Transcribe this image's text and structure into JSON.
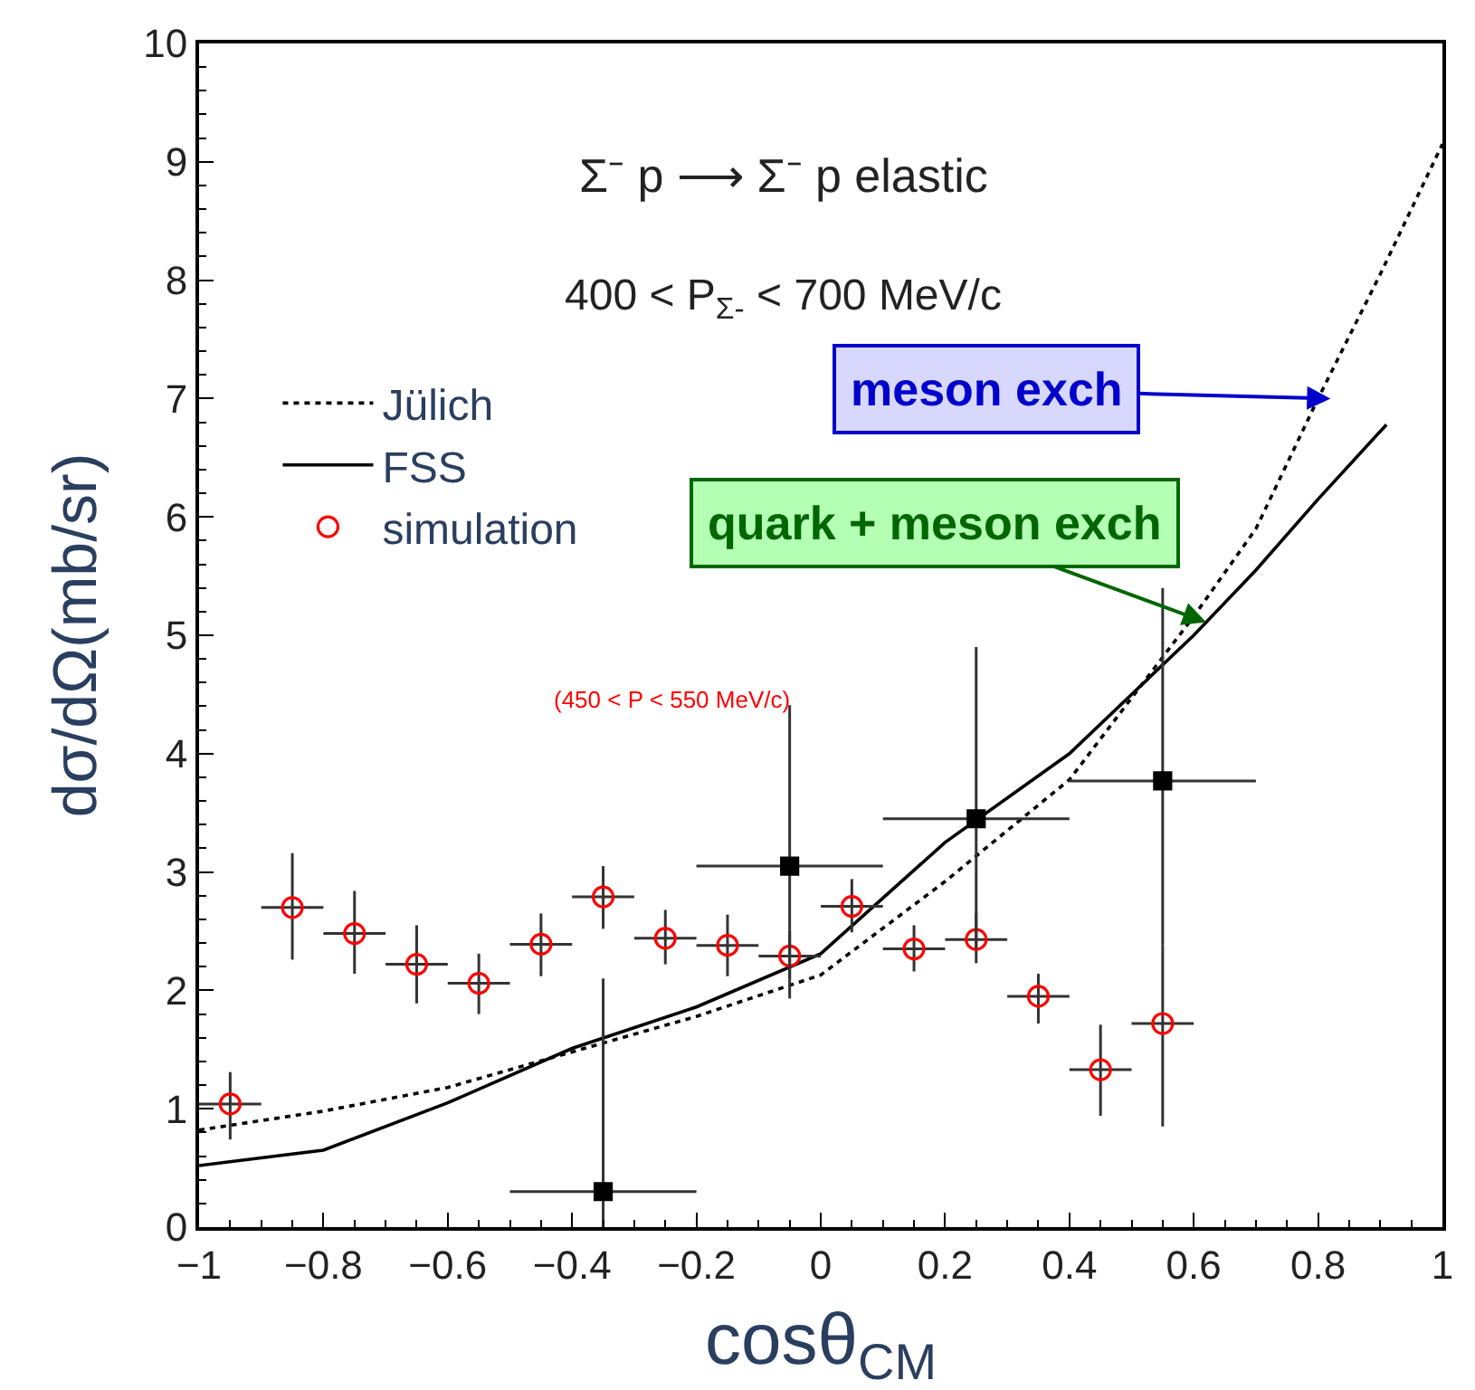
{
  "chart_data": {
    "type": "scatter",
    "xlabel": "cosθ$_{CM}$",
    "ylabel": "dσ/dΩ(mb/sr)",
    "annotations": [
      "Σ⁻ p ⟶ Σ⁻ p elastic",
      "400 < P$_{Σ-}$ < 700 MeV/c",
      "(450 < P < 550 MeV/c)",
      {
        "text": "meson exch",
        "x": 0.82,
        "y": 7.0
      },
      {
        "text": "quark + meson exch",
        "x": 0.62,
        "y": 5.11
      }
    ],
    "xlim": [
      -1,
      1
    ],
    "ylim": [
      0,
      10
    ],
    "xticks": [
      {
        "value": -1,
        "label": "−1"
      },
      {
        "value": -0.8,
        "label": "−0.8"
      },
      {
        "value": -0.6,
        "label": "−0.6"
      },
      {
        "value": -0.4,
        "label": "−0.4"
      },
      {
        "value": -0.2,
        "label": "−0.2"
      },
      0,
      0.2,
      0.4,
      0.6,
      0.8,
      1
    ],
    "yticks": [
      0,
      1,
      2,
      3,
      4,
      5,
      6,
      7,
      8,
      9,
      10
    ],
    "legend": "top left",
    "series": [
      {
        "name": "Jülich",
        "type": "line",
        "color": "#000000",
        "marker": "none",
        "line_style": "dotted",
        "x": [
          -1,
          -0.8,
          -0.6,
          -0.4,
          -0.2,
          0,
          0.2,
          0.4,
          0.6,
          0.7,
          0.8,
          0.9,
          1
        ],
        "values": [
          0.82,
          0.98,
          1.18,
          1.48,
          1.78,
          2.13,
          2.92,
          3.78,
          5.16,
          5.9,
          7.0,
          8.05,
          9.15
        ]
      },
      {
        "name": "FSS",
        "type": "line",
        "color": "#000000",
        "marker": "none",
        "line_style": "solid",
        "x": [
          -1,
          -0.8,
          -0.6,
          -0.4,
          -0.2,
          0,
          0.2,
          0.4,
          0.6,
          0.7,
          0.8,
          0.91
        ],
        "values": [
          0.52,
          0.65,
          1.05,
          1.51,
          1.86,
          2.31,
          3.25,
          4.0,
          5.0,
          5.55,
          6.15,
          6.78
        ]
      },
      {
        "name": "simulation",
        "color": "#ff0000",
        "marker": "circle",
        "x": [
          -0.95,
          -0.85,
          -0.75,
          -0.65,
          -0.55,
          -0.45,
          -0.35,
          -0.25,
          -0.15,
          -0.05,
          0.05,
          0.15,
          0.25,
          0.35,
          0.45,
          0.55
        ],
        "values": [
          1.04,
          2.7,
          2.48,
          2.22,
          2.06,
          2.39,
          2.79,
          2.44,
          2.38,
          2.29,
          2.71,
          2.35,
          2.43,
          1.95,
          1.33,
          1.72
        ],
        "errors": [
          [
            0.74,
            1.31
          ],
          [
            2.26,
            3.16
          ],
          [
            2.14,
            2.84
          ],
          [
            1.89,
            2.55
          ],
          [
            1.8,
            2.31
          ],
          [
            2.12,
            2.65
          ],
          [
            2.52,
            3.05
          ],
          [
            2.22,
            2.68
          ],
          [
            2.12,
            2.64
          ],
          [
            2.1,
            2.5
          ],
          [
            2.49,
            2.94
          ],
          [
            2.16,
            2.55
          ],
          [
            2.23,
            2.65
          ],
          [
            1.72,
            2.14
          ],
          [
            0.94,
            1.71
          ],
          [
            0.85,
            2.38
          ]
        ],
        "xerrors": [
          0.05,
          0.05,
          0.05,
          0.05,
          0.05,
          0.05,
          0.05,
          0.05,
          0.05,
          0.05,
          0.05,
          0.05,
          0.05,
          0.05,
          0.05,
          0.05
        ]
      },
      {
        "color": "#000000",
        "marker": "square",
        "x": [
          -0.35,
          -0.05,
          0.25,
          0.55
        ],
        "values": [
          0.3,
          3.05,
          3.45,
          3.77
        ],
        "errors": [
          [
            0,
            2.1
          ],
          [
            1.93,
            4.41
          ],
          [
            2.35,
            4.9
          ],
          [
            2.38,
            5.4
          ]
        ],
        "xerrors": [
          0.15,
          0.15,
          0.15,
          0.15
        ]
      }
    ]
  }
}
